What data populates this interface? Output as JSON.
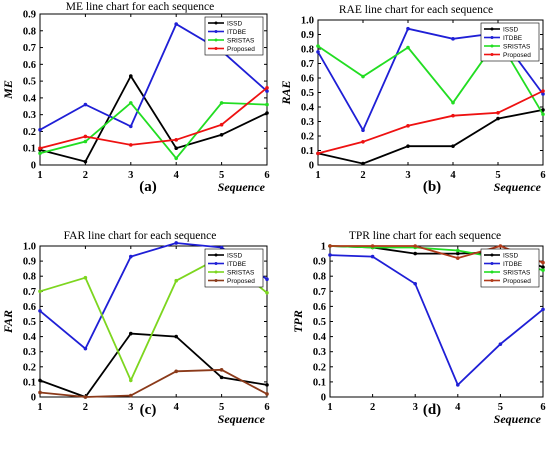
{
  "figure": {
    "chart_data": [
      {
        "type": "line",
        "title": "ME line chart for each sequence",
        "xlabel": "Sequence",
        "ylabel": "ME",
        "panel_label": "(a)",
        "x": [
          1,
          2,
          3,
          4,
          5,
          6
        ],
        "xlim": [
          1,
          6
        ],
        "ylim": [
          0,
          0.9
        ],
        "yticks": [
          "0",
          "0.1",
          "0.2",
          "0.3",
          "0.4",
          "0.5",
          "0.6",
          "0.7",
          "0.8",
          "0.9"
        ],
        "xticks": [
          "1",
          "2",
          "3",
          "4",
          "5",
          "6"
        ],
        "legend_position": "top-right",
        "series": [
          {
            "name": "ISSD",
            "color": "#000000",
            "values": [
              0.09,
              0.02,
              0.53,
              0.1,
              0.18,
              0.31
            ]
          },
          {
            "name": "ITDBE",
            "color": "#1f1fd6",
            "values": [
              0.21,
              0.36,
              0.23,
              0.84,
              0.68,
              0.44
            ]
          },
          {
            "name": "SRISTAS",
            "color": "#22dd22",
            "values": [
              0.07,
              0.14,
              0.37,
              0.04,
              0.37,
              0.36
            ]
          },
          {
            "name": "Proposed",
            "color": "#ee1111",
            "values": [
              0.1,
              0.17,
              0.12,
              0.15,
              0.24,
              0.46
            ]
          }
        ]
      },
      {
        "type": "line",
        "title": "RAE line chart for each sequence",
        "xlabel": "Sequence",
        "ylabel": "RAE",
        "panel_label": "(b)",
        "x": [
          1,
          2,
          3,
          4,
          5,
          6
        ],
        "xlim": [
          1,
          6
        ],
        "ylim": [
          0,
          1.0
        ],
        "yticks": [
          "0",
          "0.1",
          "0.2",
          "0.3",
          "0.4",
          "0.5",
          "0.6",
          "0.7",
          "0.8",
          "0.9",
          "1.0"
        ],
        "xticks": [
          "1",
          "2",
          "3",
          "4",
          "5",
          "6"
        ],
        "legend_position": "top-right",
        "series": [
          {
            "name": "ISSD",
            "color": "#000000",
            "values": [
              0.08,
              0.01,
              0.13,
              0.13,
              0.32,
              0.38
            ]
          },
          {
            "name": "ITDBE",
            "color": "#1f1fd6",
            "values": [
              0.78,
              0.24,
              0.94,
              0.87,
              0.91,
              0.49
            ]
          },
          {
            "name": "SRISTAS",
            "color": "#22dd22",
            "values": [
              0.82,
              0.61,
              0.81,
              0.43,
              0.87,
              0.35
            ]
          },
          {
            "name": "Proposed",
            "color": "#ee1111",
            "values": [
              0.08,
              0.16,
              0.27,
              0.34,
              0.36,
              0.51
            ]
          }
        ]
      },
      {
        "type": "line",
        "title": "FAR line chart for each sequence",
        "xlabel": "Sequence",
        "ylabel": "FAR",
        "panel_label": "(c)",
        "x": [
          1,
          2,
          3,
          4,
          5,
          6
        ],
        "xlim": [
          1,
          6
        ],
        "ylim": [
          0,
          1.0
        ],
        "yticks": [
          "0",
          "0.1",
          "0.2",
          "0.3",
          "0.4",
          "0.5",
          "0.6",
          "0.7",
          "0.8",
          "0.9",
          "1.0"
        ],
        "xticks": [
          "1",
          "2",
          "3",
          "4",
          "5",
          "6"
        ],
        "legend_position": "top-right",
        "series": [
          {
            "name": "ISSD",
            "color": "#000000",
            "values": [
              0.11,
              0.0,
              0.42,
              0.4,
              0.13,
              0.08
            ]
          },
          {
            "name": "ITDBE",
            "color": "#1f1fd6",
            "values": [
              0.57,
              0.32,
              0.93,
              1.02,
              0.99,
              0.78
            ]
          },
          {
            "name": "SRISTAS",
            "color": "#7dd61f",
            "values": [
              0.7,
              0.79,
              0.11,
              0.77,
              0.93,
              0.69
            ]
          },
          {
            "name": "Proposed",
            "color": "#8b3a1a",
            "values": [
              0.03,
              0.0,
              0.01,
              0.17,
              0.18,
              0.02
            ]
          }
        ]
      },
      {
        "type": "line",
        "title": "TPR line chart for each sequence",
        "xlabel": "Sequence",
        "ylabel": "TPR",
        "panel_label": "(d)",
        "x": [
          1,
          2,
          3,
          4,
          5,
          6
        ],
        "xlim": [
          1,
          6
        ],
        "ylim": [
          0,
          1.0
        ],
        "yticks": [
          "0",
          "0.1",
          "0.2",
          "0.3",
          "0.4",
          "0.5",
          "0.6",
          "0.7",
          "0.8",
          "0.9",
          "1"
        ],
        "xticks": [
          "1",
          "2",
          "3",
          "4",
          "5",
          "6"
        ],
        "legend_position": "top-right",
        "series": [
          {
            "name": "ISSD",
            "color": "#000000",
            "values": [
              1.0,
              0.99,
              0.95,
              0.95,
              0.96,
              0.86
            ]
          },
          {
            "name": "ITDBE",
            "color": "#1f1fd6",
            "values": [
              0.94,
              0.93,
              0.75,
              0.08,
              0.35,
              0.58
            ]
          },
          {
            "name": "SRISTAS",
            "color": "#22dd22",
            "values": [
              1.0,
              0.99,
              0.99,
              0.97,
              0.92,
              0.84
            ]
          },
          {
            "name": "Proposed",
            "color": "#b03a1a",
            "values": [
              1.0,
              1.0,
              1.0,
              0.92,
              1.0,
              0.89
            ]
          }
        ]
      }
    ]
  }
}
